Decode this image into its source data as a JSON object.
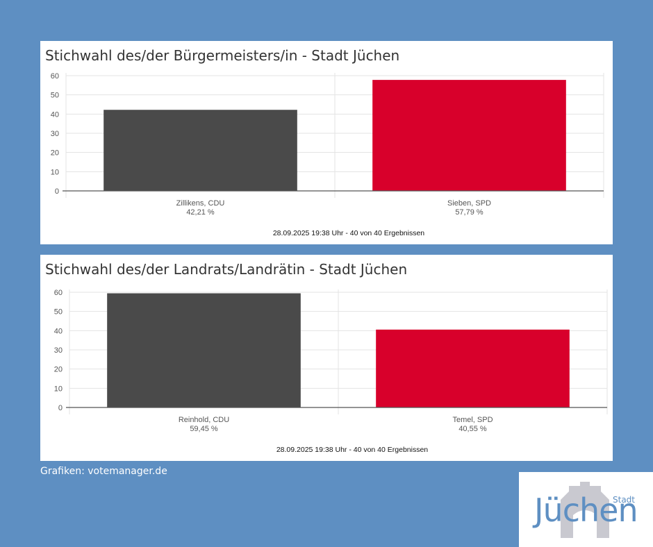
{
  "chart_data": [
    {
      "type": "bar",
      "title": "Stichwahl des/der Bürgermeisters/in - Stadt Jüchen",
      "categories": [
        "Zillikens, CDU",
        "Sieben, SPD"
      ],
      "values": [
        42.21,
        57.79
      ],
      "value_labels": [
        "42,21 %",
        "57,79 %"
      ],
      "colors": [
        "#4a4a4a",
        "#d8002b"
      ],
      "yticks": [
        0,
        10,
        20,
        30,
        40,
        50,
        60
      ],
      "ylim": [
        0,
        60
      ],
      "grid": true,
      "footnote": "28.09.2025 19:38 Uhr - 40 von 40 Ergebnissen"
    },
    {
      "type": "bar",
      "title": "Stichwahl des/der Landrats/Landrätin - Stadt Jüchen",
      "categories": [
        "Reinhold, CDU",
        "Temel, SPD"
      ],
      "values": [
        59.45,
        40.55
      ],
      "value_labels": [
        "59,45 %",
        "40,55 %"
      ],
      "colors": [
        "#4a4a4a",
        "#d8002b"
      ],
      "yticks": [
        0,
        10,
        20,
        30,
        40,
        50,
        60
      ],
      "ylim": [
        0,
        60
      ],
      "grid": true,
      "footnote": "28.09.2025 19:38 Uhr - 40 von 40 Ergebnissen"
    }
  ],
  "credit": "Grafiken: votemanager.de",
  "logo": {
    "word": "Jüchen",
    "small": "Stadt",
    "icon": "town-gate-silhouette"
  }
}
